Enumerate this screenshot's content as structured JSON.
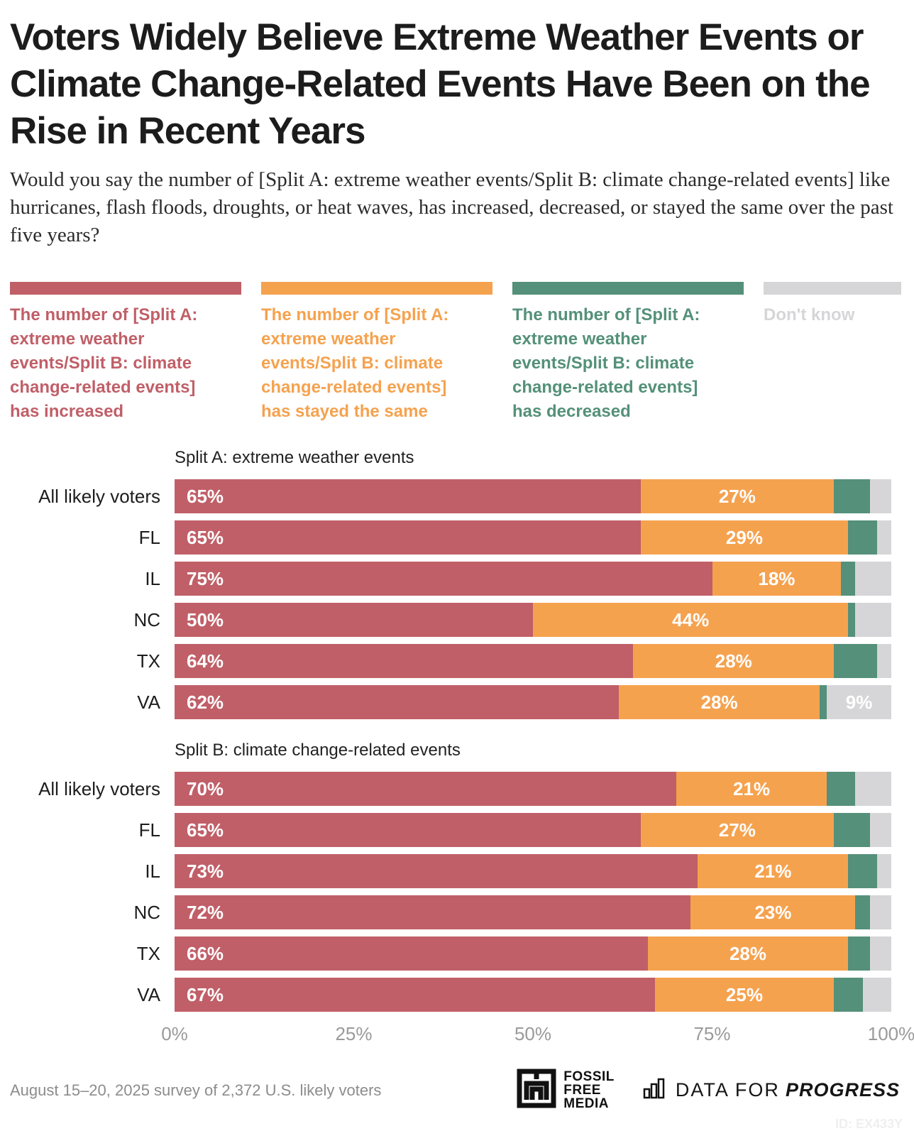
{
  "title": "Voters Widely Believe Extreme Weather Events or Climate Change-Related Events Have Been on the Rise in Recent Years",
  "subtitle": "Would you say the number of [Split A: extreme weather events/Split B: climate change-related events] like hurricanes, flash floods, droughts, or heat waves, has increased, decreased, or stayed the same over the past five years?",
  "colors": {
    "increased": "#c05f68",
    "stayed_same": "#f5a24f",
    "decreased": "#54907a",
    "dont_know": "#d6d6d8",
    "axis_text": "#9a9a9a",
    "footer_text": "#8c8c8c"
  },
  "segment_order": [
    "increased",
    "stayed_same",
    "decreased",
    "dont_know"
  ],
  "legend": [
    {
      "color": "increased",
      "text": "The number of [Split A: extreme weather events/Split B: climate change-related events] has increased",
      "lines": [
        "The number of [Split A:",
        "extreme weather",
        "events/Split B: climate",
        "change-related events]",
        "has increased"
      ]
    },
    {
      "color": "stayed_same",
      "text": "The number of [Split A: extreme weather events/Split B: climate change-related events] has stayed the same",
      "lines": [
        "The number of [Split A:",
        "extreme weather",
        "events/Split B: climate",
        "change-related events]",
        "has stayed the same"
      ]
    },
    {
      "color": "decreased",
      "text": "The number of [Split A: extreme weather events/Split B: climate change-related events] has decreased",
      "lines": [
        "The number of [Split A:",
        "extreme weather",
        "events/Split B: climate",
        "change-related events]",
        "has decreased"
      ]
    },
    {
      "color": "dont_know",
      "text": "Don't know",
      "lines": [
        "Don't know"
      ]
    }
  ],
  "sections": [
    {
      "header": "Split A: extreme weather events",
      "rows": [
        {
          "label": "All likely voters",
          "segments": [
            {
              "value": 65,
              "label": "65%"
            },
            {
              "value": 27,
              "label": "27%"
            },
            {
              "value": 5
            },
            {
              "value": 3
            }
          ]
        },
        {
          "label": "FL",
          "segments": [
            {
              "value": 65,
              "label": "65%"
            },
            {
              "value": 29,
              "label": "29%"
            },
            {
              "value": 4
            },
            {
              "value": 2
            }
          ]
        },
        {
          "label": "IL",
          "segments": [
            {
              "value": 75,
              "label": "75%"
            },
            {
              "value": 18,
              "label": "18%"
            },
            {
              "value": 2
            },
            {
              "value": 5
            }
          ]
        },
        {
          "label": "NC",
          "segments": [
            {
              "value": 50,
              "label": "50%"
            },
            {
              "value": 44,
              "label": "44%"
            },
            {
              "value": 1
            },
            {
              "value": 5
            }
          ]
        },
        {
          "label": "TX",
          "segments": [
            {
              "value": 64,
              "label": "64%"
            },
            {
              "value": 28,
              "label": "28%"
            },
            {
              "value": 6
            },
            {
              "value": 2
            }
          ]
        },
        {
          "label": "VA",
          "segments": [
            {
              "value": 62,
              "label": "62%"
            },
            {
              "value": 28,
              "label": "28%"
            },
            {
              "value": 1
            },
            {
              "value": 9,
              "label": "9%"
            }
          ]
        }
      ]
    },
    {
      "header": "Split B: climate change-related events",
      "rows": [
        {
          "label": "All likely voters",
          "segments": [
            {
              "value": 70,
              "label": "70%"
            },
            {
              "value": 21,
              "label": "21%"
            },
            {
              "value": 4
            },
            {
              "value": 5
            }
          ]
        },
        {
          "label": "FL",
          "segments": [
            {
              "value": 65,
              "label": "65%"
            },
            {
              "value": 27,
              "label": "27%"
            },
            {
              "value": 5
            },
            {
              "value": 3
            }
          ]
        },
        {
          "label": "IL",
          "segments": [
            {
              "value": 73,
              "label": "73%"
            },
            {
              "value": 21,
              "label": "21%"
            },
            {
              "value": 4
            },
            {
              "value": 2
            }
          ]
        },
        {
          "label": "NC",
          "segments": [
            {
              "value": 72,
              "label": "72%"
            },
            {
              "value": 23,
              "label": "23%"
            },
            {
              "value": 2
            },
            {
              "value": 3
            }
          ]
        },
        {
          "label": "TX",
          "segments": [
            {
              "value": 66,
              "label": "66%"
            },
            {
              "value": 28,
              "label": "28%"
            },
            {
              "value": 3
            },
            {
              "value": 3
            }
          ]
        },
        {
          "label": "VA",
          "segments": [
            {
              "value": 67,
              "label": "67%"
            },
            {
              "value": 25,
              "label": "25%"
            },
            {
              "value": 4
            },
            {
              "value": 4
            }
          ]
        }
      ]
    }
  ],
  "axis": {
    "ticks": [
      {
        "label": "0%",
        "pos": 0
      },
      {
        "label": "25%",
        "pos": 25
      },
      {
        "label": "50%",
        "pos": 50
      },
      {
        "label": "75%",
        "pos": 75
      },
      {
        "label": "100%",
        "pos": 100
      }
    ]
  },
  "footer": {
    "survey_note": "August 15–20, 2025 survey of 2,372 U.S. likely voters",
    "fossil_lines": [
      "FOSSIL",
      "FREE",
      "MEDIA"
    ],
    "dfp_light": "DATA FOR",
    "dfp_bold": "PROGRESS",
    "chart_id": "ID: EX433Y"
  },
  "chart_data": [
    {
      "type": "bar",
      "orientation": "horizontal-stacked",
      "title": "Split A: extreme weather events",
      "categories": [
        "All likely voters",
        "FL",
        "IL",
        "NC",
        "TX",
        "VA"
      ],
      "series": [
        {
          "name": "The number of [Split A: extreme weather events/Split B: climate change-related events] has increased",
          "values": [
            65,
            65,
            75,
            50,
            64,
            62
          ]
        },
        {
          "name": "The number of [Split A: extreme weather events/Split B: climate change-related events] has stayed the same",
          "values": [
            27,
            29,
            18,
            44,
            28,
            28
          ]
        },
        {
          "name": "The number of [Split A: extreme weather events/Split B: climate change-related events] has decreased",
          "values": [
            5,
            4,
            2,
            1,
            6,
            1
          ]
        },
        {
          "name": "Don't know",
          "values": [
            3,
            2,
            5,
            5,
            2,
            9
          ]
        }
      ],
      "xlim": [
        0,
        100
      ],
      "xticks": [
        "0%",
        "25%",
        "50%",
        "75%",
        "100%"
      ],
      "legend_position": "top",
      "grid": false
    },
    {
      "type": "bar",
      "orientation": "horizontal-stacked",
      "title": "Split B: climate change-related events",
      "categories": [
        "All likely voters",
        "FL",
        "IL",
        "NC",
        "TX",
        "VA"
      ],
      "series": [
        {
          "name": "The number of [Split A: extreme weather events/Split B: climate change-related events] has increased",
          "values": [
            70,
            65,
            73,
            72,
            66,
            67
          ]
        },
        {
          "name": "The number of [Split A: extreme weather events/Split B: climate change-related events] has stayed the same",
          "values": [
            21,
            27,
            21,
            23,
            28,
            25
          ]
        },
        {
          "name": "The number of [Split A: extreme weather events/Split B: climate change-related events] has decreased",
          "values": [
            4,
            5,
            4,
            2,
            3,
            4
          ]
        },
        {
          "name": "Don't know",
          "values": [
            5,
            3,
            2,
            3,
            3,
            4
          ]
        }
      ],
      "xlim": [
        0,
        100
      ],
      "xticks": [
        "0%",
        "25%",
        "50%",
        "75%",
        "100%"
      ],
      "legend_position": "top",
      "grid": false
    }
  ]
}
